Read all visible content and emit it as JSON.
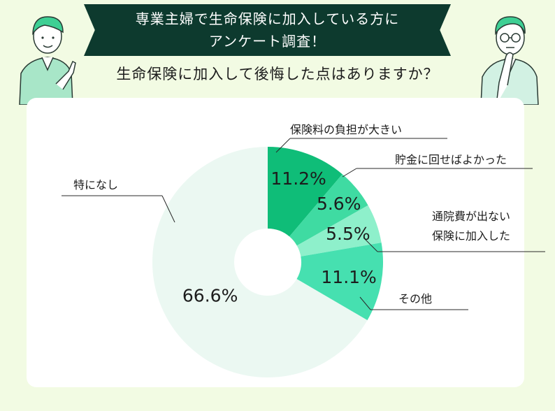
{
  "header": {
    "title_line1": "専業主婦で生命保険に加入している方に",
    "title_line2": "アンケート調査！",
    "question": "生命保険に加入して後悔した点はありますか？"
  },
  "colors": {
    "banner_bg": "#0d3a2e",
    "page_bg": "#f2fbe3",
    "slice_1": "#0fbd78",
    "slice_2": "#3fdba2",
    "slice_3": "#8ef0cb",
    "slice_4": "#46e0b0",
    "slice_5": "#ebf8f2"
  },
  "chart_data": {
    "type": "pie",
    "donut": true,
    "slices": [
      {
        "label": "保険料の負担が大きい",
        "value": 11.2,
        "value_label": "11.2%",
        "color": "#0fbd78"
      },
      {
        "label": "貯金に回せばよかった",
        "value": 5.6,
        "value_label": "5.6%",
        "color": "#3fdba2"
      },
      {
        "label": "通院費が出ない保険に加入した",
        "label_lines": [
          "通院費が出ない",
          "保険に加入した"
        ],
        "value": 5.5,
        "value_label": "5.5%",
        "color": "#8ef0cb"
      },
      {
        "label": "その他",
        "value": 11.1,
        "value_label": "11.1%",
        "color": "#46e0b0"
      },
      {
        "label": "特になし",
        "value": 66.6,
        "value_label": "66.6%",
        "color": "#ebf8f2"
      }
    ]
  }
}
